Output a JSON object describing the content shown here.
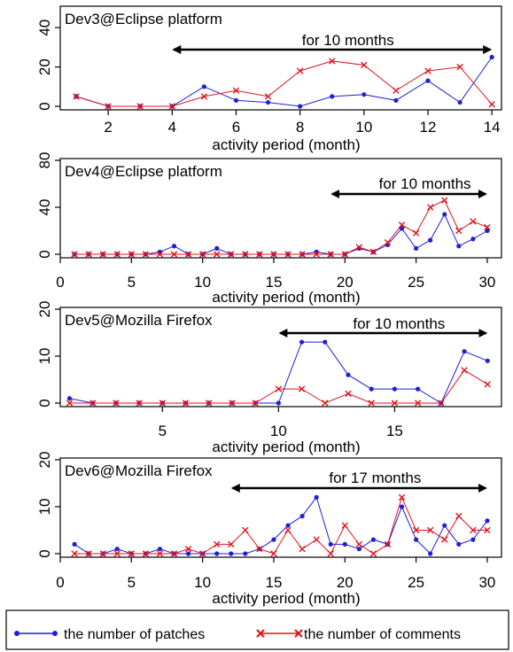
{
  "colors": {
    "patches": "#1f1fd6",
    "comments": "#e0141e",
    "axis": "#000000",
    "background": "#ffffff"
  },
  "legend": {
    "patches_label": "the number of patches",
    "comments_label": "the number of comments"
  },
  "chart_data": [
    {
      "type": "line",
      "title": "Dev3@Eclipse platform",
      "xlabel": "activity period (month)",
      "ylabel": "",
      "xlim": [
        0.5,
        14.3
      ],
      "ylim": [
        0,
        50
      ],
      "xticks": [
        2,
        4,
        6,
        8,
        10,
        12,
        14
      ],
      "yticks": [
        0,
        20,
        40
      ],
      "annotation": {
        "text": "for 10 months",
        "from": 4,
        "to": 14
      },
      "x": [
        1,
        2,
        3,
        4,
        5,
        6,
        7,
        8,
        9,
        10,
        11,
        12,
        13,
        14
      ],
      "series": [
        {
          "name": "patches",
          "marker": "dot",
          "values": [
            5,
            0,
            0,
            0,
            10,
            3,
            2,
            0,
            5,
            6,
            3,
            13,
            2,
            25
          ]
        },
        {
          "name": "comments",
          "marker": "x",
          "values": [
            5,
            0,
            0,
            0,
            5,
            8,
            5,
            18,
            23,
            21,
            8,
            18,
            20,
            1
          ]
        }
      ]
    },
    {
      "type": "line",
      "title": "Dev4@Eclipse  platform",
      "xlabel": "activity period (month)",
      "ylabel": "",
      "xlim": [
        0,
        31
      ],
      "ylim": [
        0,
        80
      ],
      "xticks": [
        0,
        5,
        10,
        15,
        20,
        25,
        30
      ],
      "yticks": [
        0,
        40,
        80
      ],
      "annotation": {
        "text": "for 10 months",
        "from": 19,
        "to": 30
      },
      "x": [
        1,
        2,
        3,
        4,
        5,
        6,
        7,
        8,
        9,
        10,
        11,
        12,
        13,
        14,
        15,
        16,
        17,
        18,
        19,
        20,
        21,
        22,
        23,
        24,
        25,
        26,
        27,
        28,
        29,
        30
      ],
      "series": [
        {
          "name": "patches",
          "marker": "dot",
          "values": [
            0,
            0,
            0,
            0,
            0,
            0,
            2,
            7,
            0,
            0,
            5,
            0,
            0,
            0,
            0,
            0,
            0,
            2,
            0,
            0,
            5,
            2,
            8,
            22,
            5,
            12,
            34,
            7,
            13,
            20
          ]
        },
        {
          "name": "comments",
          "marker": "x",
          "values": [
            0,
            0,
            0,
            0,
            0,
            0,
            0,
            0,
            0,
            0,
            0,
            0,
            0,
            0,
            0,
            0,
            0,
            0,
            0,
            0,
            6,
            2,
            10,
            25,
            18,
            40,
            46,
            20,
            28,
            23
          ]
        }
      ]
    },
    {
      "type": "line",
      "title": "Dev5@Mozilla Firefox",
      "xlabel": "activity period (month)",
      "ylabel": "",
      "xlim": [
        0.6,
        19.6
      ],
      "ylim": [
        0,
        20
      ],
      "xticks": [
        5,
        10,
        15
      ],
      "yticks": [
        0,
        10,
        20
      ],
      "annotation": {
        "text": "for 10 months",
        "from": 10,
        "to": 19
      },
      "x": [
        1,
        2,
        3,
        4,
        5,
        6,
        7,
        8,
        9,
        10,
        11,
        12,
        13,
        14,
        15,
        16,
        17,
        18,
        19
      ],
      "series": [
        {
          "name": "patches",
          "marker": "dot",
          "values": [
            1,
            0,
            0,
            0,
            0,
            0,
            0,
            0,
            0,
            0,
            13,
            13,
            6,
            3,
            3,
            3,
            0,
            11,
            9
          ]
        },
        {
          "name": "comments",
          "marker": "x",
          "values": [
            0,
            0,
            0,
            0,
            0,
            0,
            0,
            0,
            0,
            3,
            3,
            0,
            2,
            0,
            0,
            0,
            0,
            7,
            4
          ]
        }
      ]
    },
    {
      "type": "line",
      "title": "Dev6@Mozilla Firefox",
      "xlabel": "activity period (month)",
      "ylabel": "",
      "xlim": [
        0,
        31
      ],
      "ylim": [
        0,
        20
      ],
      "xticks": [
        0,
        5,
        10,
        15,
        20,
        25,
        30
      ],
      "yticks": [
        0,
        10,
        20
      ],
      "annotation": {
        "text": "for 17 months",
        "from": 12,
        "to": 30
      },
      "x": [
        1,
        2,
        3,
        4,
        5,
        6,
        7,
        8,
        9,
        10,
        11,
        12,
        13,
        14,
        15,
        16,
        17,
        18,
        19,
        20,
        21,
        22,
        23,
        24,
        25,
        26,
        27,
        28,
        29,
        30
      ],
      "series": [
        {
          "name": "patches",
          "marker": "dot",
          "values": [
            2,
            0,
            0,
            1,
            0,
            0,
            1,
            0,
            0,
            0,
            0,
            0,
            0,
            1,
            3,
            6,
            8,
            12,
            2,
            2,
            1,
            3,
            2,
            10,
            3,
            0,
            6,
            2,
            3,
            7
          ]
        },
        {
          "name": "comments",
          "marker": "x",
          "values": [
            0,
            0,
            0,
            0,
            0,
            0,
            0,
            0,
            1,
            0,
            2,
            2,
            5,
            1,
            0,
            5,
            1,
            3,
            0,
            6,
            2,
            0,
            2,
            12,
            5,
            5,
            3,
            8,
            5,
            5
          ]
        }
      ]
    }
  ]
}
